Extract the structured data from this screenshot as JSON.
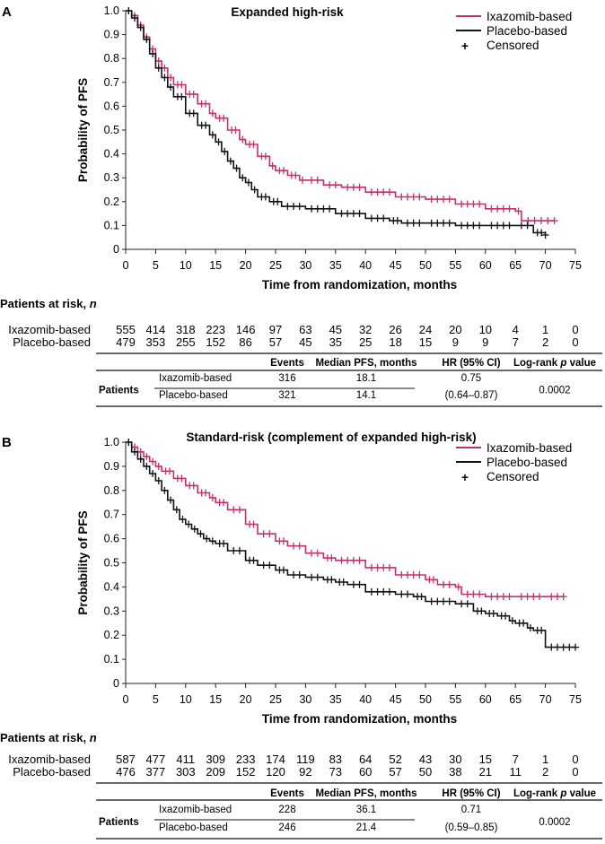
{
  "colors": {
    "ixazomib": "#c2306e",
    "placebo": "#111111",
    "axis": "#222222"
  },
  "chart_data": [
    {
      "type": "line",
      "panel": "A",
      "title": "Expanded high-risk",
      "xlabel": "Time from randomization, months",
      "ylabel": "Probability of PFS",
      "xlim": [
        0,
        75
      ],
      "ylim": [
        0,
        1.0
      ],
      "xticks": [
        0,
        5,
        10,
        15,
        20,
        25,
        30,
        35,
        40,
        45,
        50,
        55,
        60,
        65,
        70,
        75
      ],
      "yticks": [
        0,
        0.1,
        0.2,
        0.3,
        0.4,
        0.5,
        0.6,
        0.7,
        0.8,
        0.9,
        1.0
      ],
      "grid": false,
      "legend_position": "top-right",
      "legend": [
        "Ixazomib-based",
        "Placebo-based",
        "Censored"
      ],
      "series": [
        {
          "name": "Ixazomib-based",
          "x": [
            0,
            1,
            2,
            3,
            4,
            5,
            6,
            7,
            8,
            10,
            12,
            14,
            15,
            17,
            19,
            20,
            22,
            24,
            25,
            27,
            29,
            30,
            33,
            36,
            40,
            45,
            50,
            55,
            60,
            65,
            66,
            71.5
          ],
          "y": [
            1.0,
            0.98,
            0.94,
            0.89,
            0.84,
            0.79,
            0.76,
            0.72,
            0.69,
            0.65,
            0.61,
            0.57,
            0.55,
            0.5,
            0.46,
            0.44,
            0.39,
            0.35,
            0.33,
            0.31,
            0.29,
            0.29,
            0.27,
            0.26,
            0.24,
            0.22,
            0.21,
            0.19,
            0.17,
            0.16,
            0.12,
            0.12
          ]
        },
        {
          "name": "Placebo-based",
          "x": [
            0,
            1,
            2,
            3,
            4,
            5,
            6,
            7,
            8,
            10,
            12,
            14,
            15,
            16,
            17,
            18,
            19,
            20,
            21,
            22,
            24,
            26,
            30,
            35,
            40,
            44,
            46,
            50,
            55,
            60,
            65,
            68,
            70
          ],
          "y": [
            1.0,
            0.97,
            0.93,
            0.88,
            0.82,
            0.76,
            0.72,
            0.68,
            0.64,
            0.57,
            0.52,
            0.48,
            0.45,
            0.41,
            0.37,
            0.34,
            0.3,
            0.28,
            0.25,
            0.22,
            0.2,
            0.18,
            0.17,
            0.15,
            0.13,
            0.12,
            0.11,
            0.11,
            0.1,
            0.1,
            0.1,
            0.07,
            0.06
          ]
        }
      ],
      "risk_table": {
        "header": "Patients at risk, ",
        "header_italic": "n",
        "times": [
          0,
          5,
          10,
          15,
          20,
          25,
          30,
          35,
          40,
          45,
          50,
          55,
          60,
          65,
          70,
          75
        ],
        "rows": [
          {
            "label": "Ixazomib-based",
            "values": [
              "555",
              "414",
              "318",
              "223",
              "146",
              "97",
              "63",
              "45",
              "32",
              "26",
              "24",
              "20",
              "10",
              "4",
              "1",
              "0"
            ]
          },
          {
            "label": "Placebo-based",
            "values": [
              "479",
              "353",
              "255",
              "152",
              "86",
              "57",
              "45",
              "35",
              "25",
              "18",
              "15",
              "9",
              "9",
              "7",
              "2",
              "0"
            ]
          }
        ]
      },
      "summary_table": {
        "headers": [
          "Events",
          "Median PFS, months",
          "HR (95% CI)",
          "Log-rank p value"
        ],
        "row_group": "Patients",
        "rows": [
          {
            "label": "Ixazomib-based",
            "events": "316",
            "median": "18.1"
          },
          {
            "label": "Placebo-based",
            "events": "321",
            "median": "14.1"
          }
        ],
        "hr": "0.75",
        "ci": "(0.64–0.87)",
        "p": "0.0002"
      }
    },
    {
      "type": "line",
      "panel": "B",
      "title": "Standard-risk (complement of expanded high-risk)",
      "xlabel": "Time from randomization, months",
      "ylabel": "Probability of PFS",
      "xlim": [
        0,
        75
      ],
      "ylim": [
        0,
        1.0
      ],
      "xticks": [
        0,
        5,
        10,
        15,
        20,
        25,
        30,
        35,
        40,
        45,
        50,
        55,
        60,
        65,
        70,
        75
      ],
      "yticks": [
        0,
        0.1,
        0.2,
        0.3,
        0.4,
        0.5,
        0.6,
        0.7,
        0.8,
        0.9,
        1.0
      ],
      "grid": false,
      "legend_position": "top-right",
      "legend": [
        "Ixazomib-based",
        "Placebo-based",
        "Censored"
      ],
      "series": [
        {
          "name": "Ixazomib-based",
          "x": [
            0,
            1,
            2,
            3,
            4,
            5,
            6,
            8,
            10,
            12,
            14,
            15,
            17,
            20,
            22,
            25,
            27,
            30,
            33,
            35,
            40,
            45,
            50,
            52,
            55,
            56,
            60,
            65,
            70,
            73
          ],
          "y": [
            1.0,
            0.98,
            0.96,
            0.94,
            0.92,
            0.9,
            0.88,
            0.85,
            0.82,
            0.79,
            0.77,
            0.75,
            0.72,
            0.66,
            0.62,
            0.59,
            0.57,
            0.54,
            0.52,
            0.51,
            0.48,
            0.45,
            0.43,
            0.41,
            0.4,
            0.37,
            0.36,
            0.36,
            0.36,
            0.36
          ]
        },
        {
          "name": "Placebo-based",
          "x": [
            0,
            1,
            2,
            3,
            4,
            5,
            6,
            7,
            8,
            9,
            10,
            11,
            12,
            13,
            14,
            15,
            17,
            20,
            22,
            25,
            27,
            30,
            33,
            35,
            37,
            40,
            45,
            48,
            50,
            55,
            58,
            60,
            62,
            64,
            65,
            67,
            68,
            70,
            75
          ],
          "y": [
            1.0,
            0.96,
            0.93,
            0.9,
            0.87,
            0.84,
            0.8,
            0.76,
            0.72,
            0.68,
            0.66,
            0.64,
            0.62,
            0.6,
            0.59,
            0.58,
            0.55,
            0.51,
            0.49,
            0.47,
            0.45,
            0.44,
            0.43,
            0.42,
            0.41,
            0.38,
            0.37,
            0.36,
            0.34,
            0.33,
            0.3,
            0.29,
            0.28,
            0.26,
            0.25,
            0.23,
            0.22,
            0.15,
            0.15
          ]
        }
      ],
      "risk_table": {
        "header": "Patients at risk, ",
        "header_italic": "n",
        "times": [
          0,
          5,
          10,
          15,
          20,
          25,
          30,
          35,
          40,
          45,
          50,
          55,
          60,
          65,
          70,
          75
        ],
        "rows": [
          {
            "label": "Ixazomib-based",
            "values": [
              "587",
              "477",
              "411",
              "309",
              "233",
              "174",
              "119",
              "83",
              "64",
              "52",
              "43",
              "30",
              "15",
              "7",
              "1",
              "0"
            ]
          },
          {
            "label": "Placebo-based",
            "values": [
              "476",
              "377",
              "303",
              "209",
              "152",
              "120",
              "92",
              "73",
              "60",
              "57",
              "50",
              "38",
              "21",
              "11",
              "2",
              "0"
            ]
          }
        ]
      },
      "summary_table": {
        "headers": [
          "Events",
          "Median PFS, months",
          "HR (95% CI)",
          "Log-rank p value"
        ],
        "row_group": "Patients",
        "rows": [
          {
            "label": "Ixazomib-based",
            "events": "228",
            "median": "36.1"
          },
          {
            "label": "Placebo-based",
            "events": "246",
            "median": "21.4"
          }
        ],
        "hr": "0.71",
        "ci": "(0.59–0.85)",
        "p": "0.0002"
      }
    }
  ]
}
